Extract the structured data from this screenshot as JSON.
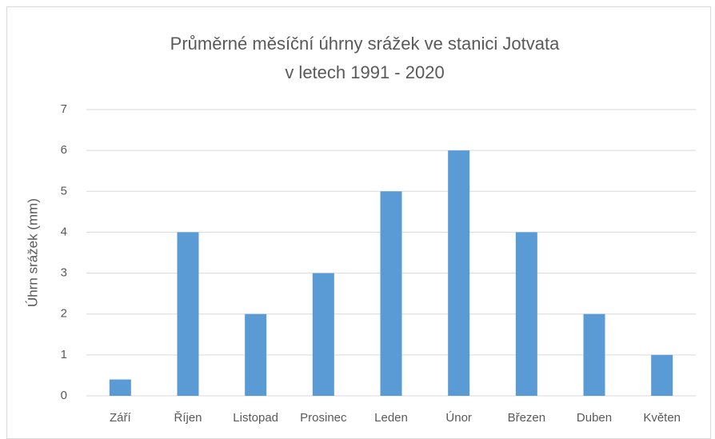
{
  "chart_data": {
    "type": "bar",
    "title": [
      "Průměrné měsíční úhrny srážek ve stanici Jotvata",
      "v letech 1991 - 2020"
    ],
    "y_label": "Úhrn srážek (mm)",
    "categories": [
      "Září",
      "Říjen",
      "Listopad",
      "Prosinec",
      "Leden",
      "Únor",
      "Březen",
      "Duben",
      "Květen"
    ],
    "values": [
      0.4,
      4,
      2,
      3,
      5,
      6,
      4,
      2,
      1
    ],
    "color": "#5b9bd5",
    "ylim": [
      0,
      7
    ],
    "yticks": [
      0,
      1,
      2,
      3,
      4,
      5,
      6,
      7
    ],
    "grid": true
  }
}
